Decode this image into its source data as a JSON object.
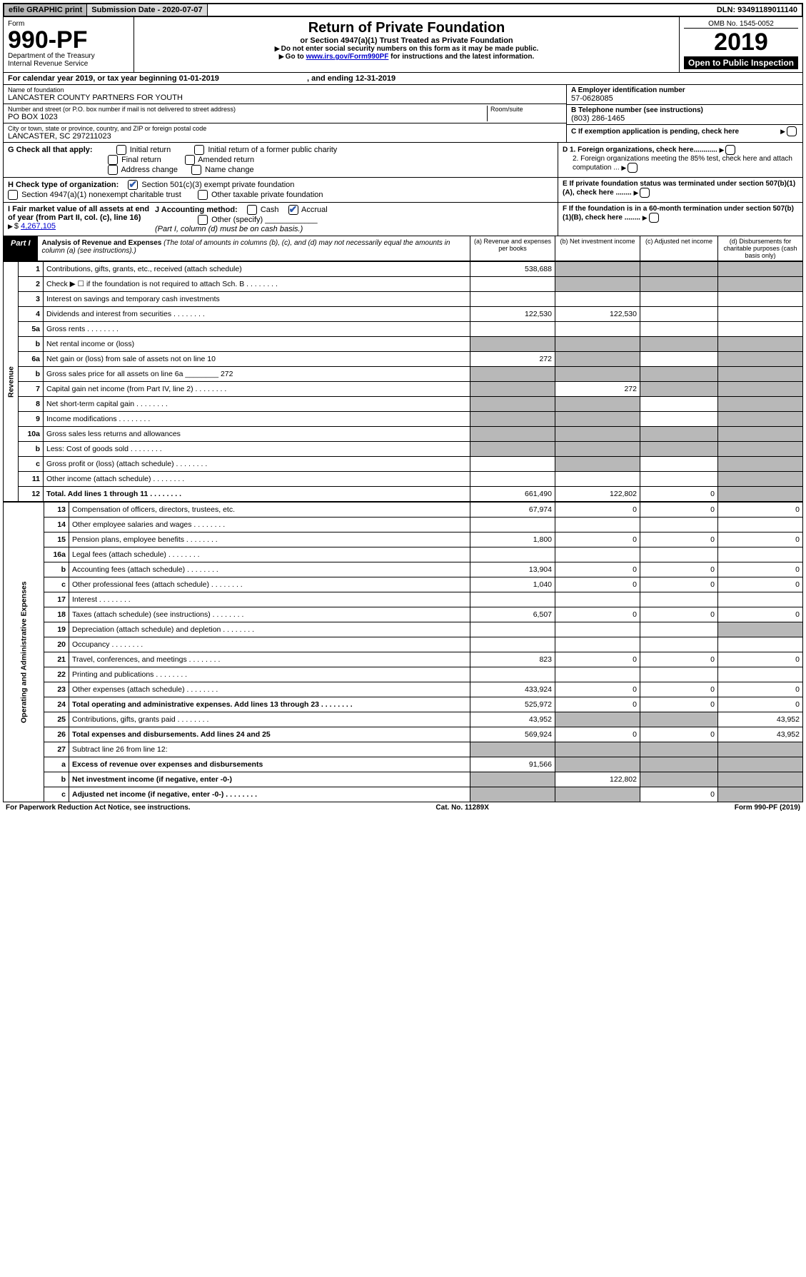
{
  "topbar": {
    "efile": "efile GRAPHIC print",
    "subdate_label": "Submission Date - ",
    "subdate": "2020-07-07",
    "dln_label": "DLN: ",
    "dln": "93491189011140"
  },
  "header": {
    "form_word": "Form",
    "form_no": "990-PF",
    "dept1": "Department of the Treasury",
    "dept2": "Internal Revenue Service",
    "title": "Return of Private Foundation",
    "subtitle": "or Section 4947(a)(1) Trust Treated as Private Foundation",
    "note1": "Do not enter social security numbers on this form as it may be made public.",
    "note2_pre": "Go to ",
    "note2_link": "www.irs.gov/Form990PF",
    "note2_post": " for instructions and the latest information.",
    "omb": "OMB No. 1545-0052",
    "year": "2019",
    "open": "Open to Public Inspection"
  },
  "cal": {
    "pre": "For calendar year 2019, or tax year beginning ",
    "begin": "01-01-2019",
    "mid": " , and ending ",
    "end": "12-31-2019"
  },
  "entity": {
    "name_label": "Name of foundation",
    "name": "LANCASTER COUNTY PARTNERS FOR YOUTH",
    "addr_label": "Number and street (or P.O. box number if mail is not delivered to street address)",
    "addr": "PO BOX 1023",
    "room_label": "Room/suite",
    "city_label": "City or town, state or province, country, and ZIP or foreign postal code",
    "city": "LANCASTER, SC  297211023"
  },
  "right": {
    "a_label": "A Employer identification number",
    "a_val": "57-0628085",
    "b_label": "B Telephone number (see instructions)",
    "b_val": "(803) 286-1465",
    "c_label": "C If exemption application is pending, check here",
    "d1": "D 1. Foreign organizations, check here............",
    "d2": "2. Foreign organizations meeting the 85% test, check here and attach computation ...",
    "e": "E   If private foundation status was terminated under section 507(b)(1)(A), check here ........",
    "f": "F   If the foundation is in a 60-month termination under section 507(b)(1)(B), check here ........"
  },
  "g": {
    "label": "G Check all that apply:",
    "opts": [
      "Initial return",
      "Final return",
      "Address change",
      "Initial return of a former public charity",
      "Amended return",
      "Name change"
    ]
  },
  "h": {
    "label": "H Check type of organization:",
    "o1": "Section 501(c)(3) exempt private foundation",
    "o2": "Section 4947(a)(1) nonexempt charitable trust",
    "o3": "Other taxable private foundation"
  },
  "i": {
    "label": "I Fair market value of all assets at end of year (from Part II, col. (c), line 16)",
    "val_pre": "$ ",
    "val": "4,267,105"
  },
  "j": {
    "label": "J Accounting method:",
    "cash": "Cash",
    "accrual": "Accrual",
    "other": "Other (specify)",
    "note": "(Part I, column (d) must be on cash basis.)"
  },
  "part1": {
    "tag": "Part I",
    "title": "Analysis of Revenue and Expenses",
    "sub": " (The total of amounts in columns (b), (c), and (d) may not necessarily equal the amounts in column (a) (see instructions).)",
    "colA": "(a)    Revenue and expenses per books",
    "colB": "(b)   Net investment income",
    "colC": "(c)   Adjusted net income",
    "colD": "(d)   Disbursements for charitable purposes (cash basis only)"
  },
  "vlabels": {
    "rev": "Revenue",
    "exp": "Operating and Administrative Expenses"
  },
  "rows": [
    {
      "n": "1",
      "d": "Contributions, gifts, grants, etc., received (attach schedule)",
      "a": "538,688",
      "bG": 1,
      "cG": 1,
      "dG": 1
    },
    {
      "n": "2",
      "d": "Check ▶ ☐ if the foundation is not required to attach Sch. B",
      "dots": 1,
      "bG": 1,
      "cG": 1,
      "dG": 1
    },
    {
      "n": "3",
      "d": "Interest on savings and temporary cash investments"
    },
    {
      "n": "4",
      "d": "Dividends and interest from securities",
      "dots": 1,
      "a": "122,530",
      "b": "122,530"
    },
    {
      "n": "5a",
      "d": "Gross rents",
      "dots": 1
    },
    {
      "n": "b",
      "d": "Net rental income or (loss)",
      "aG": 1,
      "bG": 1,
      "cG": 1,
      "dG": 1
    },
    {
      "n": "6a",
      "d": "Net gain or (loss) from sale of assets not on line 10",
      "a": "272",
      "bG": 1,
      "dG": 1
    },
    {
      "n": "b",
      "d": "Gross sales price for all assets on line 6a ________ 272",
      "aG": 1,
      "bG": 1,
      "cG": 1,
      "dG": 1
    },
    {
      "n": "7",
      "d": "Capital gain net income (from Part IV, line 2)",
      "dots": 1,
      "aG": 1,
      "b": "272",
      "cG": 1,
      "dG": 1
    },
    {
      "n": "8",
      "d": "Net short-term capital gain",
      "dots": 1,
      "aG": 1,
      "bG": 1,
      "dG": 1
    },
    {
      "n": "9",
      "d": "Income modifications",
      "dots": 1,
      "aG": 1,
      "bG": 1,
      "dG": 1
    },
    {
      "n": "10a",
      "d": "Gross sales less returns and allowances",
      "aG": 1,
      "bG": 1,
      "cG": 1,
      "dG": 1
    },
    {
      "n": "b",
      "d": "Less: Cost of goods sold",
      "dots": 1,
      "aG": 1,
      "bG": 1,
      "cG": 1,
      "dG": 1
    },
    {
      "n": "c",
      "d": "Gross profit or (loss) (attach schedule)",
      "dots": 1,
      "bG": 1,
      "dG": 1
    },
    {
      "n": "11",
      "d": "Other income (attach schedule)",
      "dots": 1,
      "dG": 1
    },
    {
      "n": "12",
      "d": "Total. Add lines 1 through 11",
      "bold": 1,
      "dots": 1,
      "a": "661,490",
      "b": "122,802",
      "c": "0",
      "dG": 1
    }
  ],
  "exp_rows": [
    {
      "n": "13",
      "d": "Compensation of officers, directors, trustees, etc.",
      "a": "67,974",
      "b": "0",
      "c": "0",
      "dd": "0"
    },
    {
      "n": "14",
      "d": "Other employee salaries and wages",
      "dots": 1
    },
    {
      "n": "15",
      "d": "Pension plans, employee benefits",
      "dots": 1,
      "a": "1,800",
      "b": "0",
      "c": "0",
      "dd": "0"
    },
    {
      "n": "16a",
      "d": "Legal fees (attach schedule)",
      "dots": 1
    },
    {
      "n": "b",
      "d": "Accounting fees (attach schedule)",
      "dots": 1,
      "a": "13,904",
      "b": "0",
      "c": "0",
      "dd": "0"
    },
    {
      "n": "c",
      "d": "Other professional fees (attach schedule)",
      "dots": 1,
      "a": "1,040",
      "b": "0",
      "c": "0",
      "dd": "0"
    },
    {
      "n": "17",
      "d": "Interest",
      "dots": 1
    },
    {
      "n": "18",
      "d": "Taxes (attach schedule) (see instructions)",
      "dots": 1,
      "a": "6,507",
      "b": "0",
      "c": "0",
      "dd": "0"
    },
    {
      "n": "19",
      "d": "Depreciation (attach schedule) and depletion",
      "dots": 1,
      "dG": 1
    },
    {
      "n": "20",
      "d": "Occupancy",
      "dots": 1
    },
    {
      "n": "21",
      "d": "Travel, conferences, and meetings",
      "dots": 1,
      "a": "823",
      "b": "0",
      "c": "0",
      "dd": "0"
    },
    {
      "n": "22",
      "d": "Printing and publications",
      "dots": 1
    },
    {
      "n": "23",
      "d": "Other expenses (attach schedule)",
      "dots": 1,
      "a": "433,924",
      "b": "0",
      "c": "0",
      "dd": "0"
    },
    {
      "n": "24",
      "d": "Total operating and administrative expenses. Add lines 13 through 23",
      "bold": 1,
      "dots": 1,
      "a": "525,972",
      "b": "0",
      "c": "0",
      "dd": "0"
    },
    {
      "n": "25",
      "d": "Contributions, gifts, grants paid",
      "dots": 1,
      "a": "43,952",
      "bG": 1,
      "cG": 1,
      "dd": "43,952"
    },
    {
      "n": "26",
      "d": "Total expenses and disbursements. Add lines 24 and 25",
      "bold": 1,
      "a": "569,924",
      "b": "0",
      "c": "0",
      "dd": "43,952"
    },
    {
      "n": "27",
      "d": "Subtract line 26 from line 12:",
      "aG": 1,
      "bG": 1,
      "cG": 1,
      "dG": 1
    },
    {
      "n": "a",
      "d": "Excess of revenue over expenses and disbursements",
      "bold": 1,
      "a": "91,566",
      "bG": 1,
      "cG": 1,
      "dG": 1
    },
    {
      "n": "b",
      "d": "Net investment income (if negative, enter -0-)",
      "bold": 1,
      "aG": 1,
      "b": "122,802",
      "cG": 1,
      "dG": 1
    },
    {
      "n": "c",
      "d": "Adjusted net income (if negative, enter -0-)",
      "bold": 1,
      "dots": 1,
      "aG": 1,
      "bG": 1,
      "c": "0",
      "dG": 1
    }
  ],
  "footer": {
    "left": "For Paperwork Reduction Act Notice, see instructions.",
    "mid": "Cat. No. 11289X",
    "right": "Form 990-PF (2019)"
  }
}
